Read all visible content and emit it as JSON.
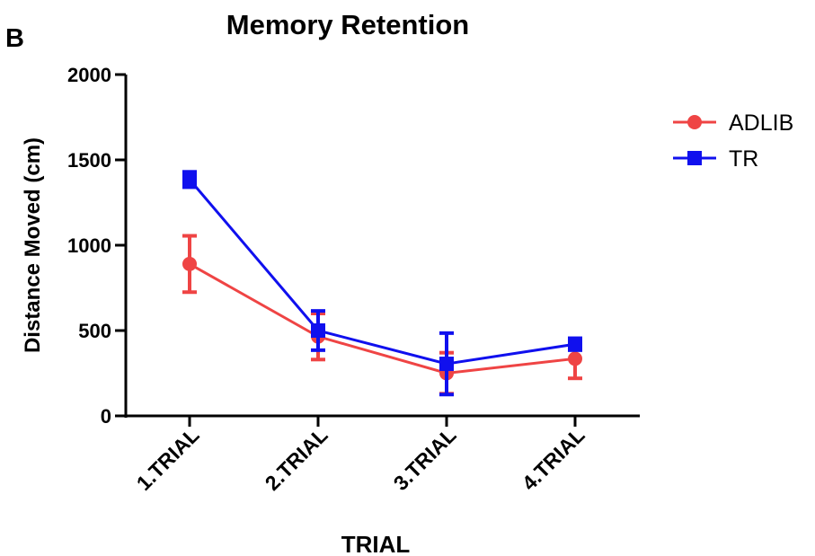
{
  "panel_letter": "B",
  "chart_data": {
    "type": "line",
    "title": "Memory Retention",
    "xlabel": "TRIAL",
    "ylabel": "Distance Moved (cm)",
    "categories": [
      "1.TRIAL",
      "2.TRIAL",
      "3.TRIAL",
      "4.TRIAL"
    ],
    "ylim": [
      0,
      2000
    ],
    "yticks": [
      "0",
      "500",
      "1000",
      "1500",
      "2000"
    ],
    "grid": false,
    "legend_position": "top-right",
    "series": [
      {
        "name": "ADLIB",
        "marker": "circle",
        "color": "#ef4444",
        "values": [
          890,
          465,
          250,
          335
        ],
        "error": [
          165,
          135,
          120,
          115
        ]
      },
      {
        "name": "TR",
        "marker": "square",
        "color": "#1010ee",
        "values": [
          1385,
          500,
          305,
          420
        ],
        "error": [
          45,
          115,
          180,
          35
        ]
      }
    ]
  }
}
